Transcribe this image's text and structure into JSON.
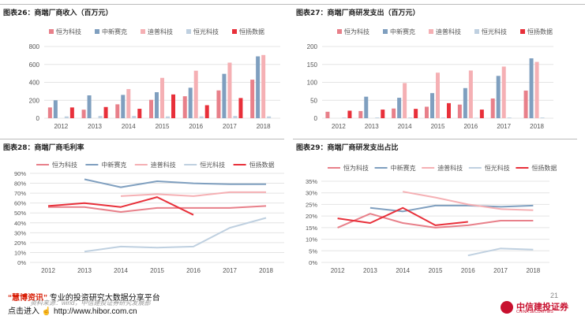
{
  "chart_data": [
    {
      "type": "bar",
      "title": "图表26：商端厂商收入（百万元）",
      "categories": [
        "2012",
        "2013",
        "2014",
        "2015",
        "2016",
        "2017",
        "2018"
      ],
      "ylim": [
        0,
        800
      ],
      "yticks": [
        0,
        200,
        400,
        600,
        800
      ],
      "grid": true,
      "legend": "top",
      "series": [
        {
          "name": "恒为科技",
          "color": "#e8808a",
          "values": [
            120,
            95,
            155,
            205,
            245,
            310,
            430
          ]
        },
        {
          "name": "中新赛克",
          "color": "#7f9fbf",
          "values": [
            200,
            255,
            260,
            290,
            340,
            495,
            690
          ]
        },
        {
          "name": "迪普科技",
          "color": "#f5b0b4",
          "values": [
            null,
            null,
            325,
            450,
            530,
            620,
            705
          ]
        },
        {
          "name": "恒光科技",
          "color": "#bfd0e0",
          "values": [
            20,
            25,
            25,
            20,
            20,
            25,
            20
          ]
        },
        {
          "name": "恒扬数据",
          "color": "#e8303a",
          "values": [
            120,
            125,
            105,
            265,
            145,
            225,
            null
          ]
        }
      ]
    },
    {
      "type": "bar",
      "title": "图表27：商端厂商研发支出（百万元）",
      "categories": [
        "2012",
        "2013",
        "2014",
        "2015",
        "2016",
        "2017",
        "2018"
      ],
      "ylim": [
        0,
        200
      ],
      "yticks": [
        0,
        50,
        100,
        150,
        200
      ],
      "grid": true,
      "legend": "top",
      "series": [
        {
          "name": "恒为科技",
          "color": "#e8808a",
          "values": [
            18,
            20,
            27,
            32,
            38,
            55,
            77
          ]
        },
        {
          "name": "中新赛克",
          "color": "#7f9fbf",
          "values": [
            null,
            60,
            57,
            70,
            84,
            118,
            167
          ]
        },
        {
          "name": "迪普科技",
          "color": "#f5b0b4",
          "values": [
            null,
            null,
            98,
            127,
            133,
            144,
            157
          ]
        },
        {
          "name": "恒光科技",
          "color": "#bfd0e0",
          "values": [
            2,
            2,
            2,
            2,
            1,
            2,
            2
          ]
        },
        {
          "name": "恒扬数据",
          "color": "#e8303a",
          "values": [
            21,
            24,
            26,
            42,
            24,
            null,
            null
          ]
        }
      ]
    },
    {
      "type": "line",
      "title": "图表28：商端厂商毛利率",
      "x": [
        "2012",
        "2013",
        "2014",
        "2015",
        "2016",
        "2017",
        "2018"
      ],
      "ylim": [
        0,
        90
      ],
      "yticks": [
        "0%",
        "10%",
        "20%",
        "30%",
        "40%",
        "50%",
        "60%",
        "70%",
        "80%",
        "90%"
      ],
      "grid": true,
      "legend": "top",
      "series": [
        {
          "name": "恒为科技",
          "color": "#e8808a",
          "values": [
            56,
            56,
            51,
            55,
            55,
            55,
            57
          ]
        },
        {
          "name": "中新赛克",
          "color": "#7f9fbf",
          "values": [
            null,
            84,
            76,
            82,
            80,
            79,
            79
          ]
        },
        {
          "name": "迪普科技",
          "color": "#f5b0b4",
          "values": [
            null,
            null,
            67,
            69,
            67,
            71,
            71
          ]
        },
        {
          "name": "恒光科技",
          "color": "#bfd0e0",
          "values": [
            null,
            11,
            16,
            15,
            16,
            35,
            45
          ]
        },
        {
          "name": "恒扬数据",
          "color": "#e8303a",
          "values": [
            57,
            60,
            56,
            66,
            48,
            null,
            null
          ]
        }
      ]
    },
    {
      "type": "line",
      "title": "图表29：商端厂商研发支出占比",
      "x": [
        "2012",
        "2013",
        "2014",
        "2015",
        "2016",
        "2017",
        "2018"
      ],
      "ylim": [
        0,
        35
      ],
      "yticks": [
        "0%",
        "5%",
        "10%",
        "15%",
        "20%",
        "25%",
        "30%",
        "35%"
      ],
      "grid": true,
      "legend": "top",
      "series": [
        {
          "name": "恒为科技",
          "color": "#e8808a",
          "values": [
            15,
            21,
            17,
            15,
            16,
            18,
            18
          ]
        },
        {
          "name": "中新赛克",
          "color": "#7f9fbf",
          "values": [
            null,
            23.5,
            22,
            24.5,
            24.5,
            24,
            24.5
          ]
        },
        {
          "name": "迪普科技",
          "color": "#f5b0b4",
          "values": [
            null,
            null,
            30.5,
            28,
            25,
            23,
            22.5
          ]
        },
        {
          "name": "恒光科技",
          "color": "#bfd0e0",
          "values": [
            null,
            null,
            null,
            null,
            3,
            6,
            5.5
          ]
        },
        {
          "name": "恒扬数据",
          "color": "#e8303a",
          "values": [
            19,
            17,
            23.5,
            16,
            17.5,
            null,
            null
          ]
        }
      ]
    }
  ],
  "footer": {
    "brand": "“慧博资讯”",
    "tagline": " 专业的投资研究大数据分享平台",
    "click_prefix": "点击进入",
    "url": "http://www.hibor.com.cn",
    "source": "资料来源：wind，中信建投证券研究发展部",
    "page_number": "21",
    "logo_cn": "中信建投证券",
    "logo_en": "CHINA SECURITIES"
  }
}
